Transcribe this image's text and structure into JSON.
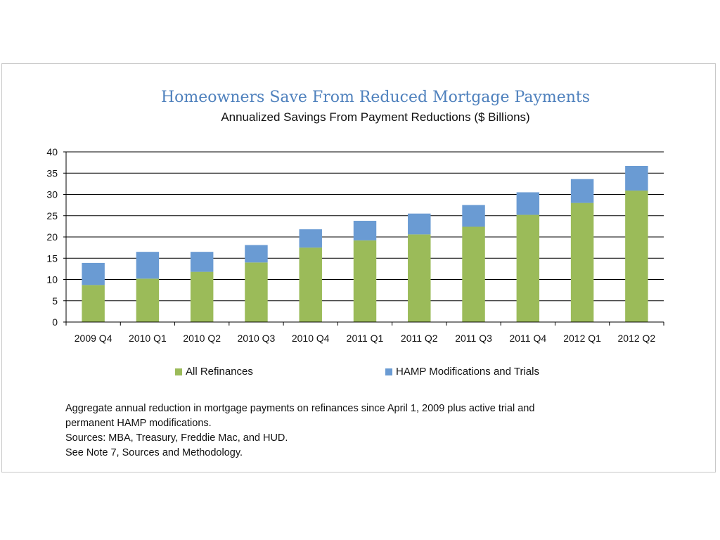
{
  "chart_data": {
    "type": "bar",
    "stacked": true,
    "title": "Homeowners Save From Reduced Mortgage Payments",
    "subtitle": "Annualized Savings From Payment Reductions ($ Billions)",
    "categories": [
      "2009 Q4",
      "2010 Q1",
      "2010 Q2",
      "2010 Q3",
      "2010 Q4",
      "2011 Q1",
      "2011 Q2",
      "2011 Q3",
      "2011 Q4",
      "2012 Q1",
      "2012 Q2"
    ],
    "series": [
      {
        "name": "All Refinances",
        "color": "#9bbb59",
        "values": [
          8.7,
          10.2,
          11.8,
          14.0,
          17.5,
          19.2,
          20.6,
          22.4,
          25.2,
          28.0,
          30.9
        ]
      },
      {
        "name": "HAMP Modifications and Trials",
        "color": "#6a9bd3",
        "values": [
          5.2,
          6.3,
          4.7,
          4.1,
          4.3,
          4.6,
          4.9,
          5.1,
          5.3,
          5.6,
          5.8
        ]
      }
    ],
    "ylim": [
      0,
      40
    ],
    "yticks": [
      0,
      5,
      10,
      15,
      20,
      25,
      30,
      35,
      40
    ],
    "grid": true,
    "legend_position": "bottom"
  },
  "notes": [
    "Aggregate annual reduction in mortgage payments on refinances since April 1, 2009 plus active trial and",
    "permanent HAMP modifications.",
    "Sources:  MBA, Treasury, Freddie Mac, and HUD.",
    "See Note 7, Sources and Methodology."
  ]
}
